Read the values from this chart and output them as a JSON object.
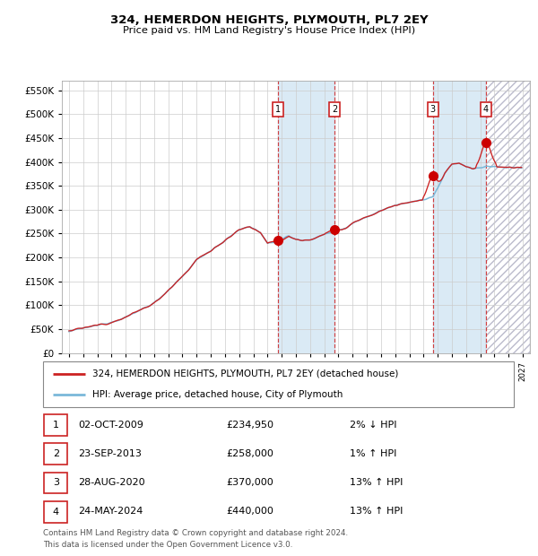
{
  "title": "324, HEMERDON HEIGHTS, PLYMOUTH, PL7 2EY",
  "subtitle": "Price paid vs. HM Land Registry's House Price Index (HPI)",
  "legend_line1": "324, HEMERDON HEIGHTS, PLYMOUTH, PL7 2EY (detached house)",
  "legend_line2": "HPI: Average price, detached house, City of Plymouth",
  "footer1": "Contains HM Land Registry data © Crown copyright and database right 2024.",
  "footer2": "This data is licensed under the Open Government Licence v3.0.",
  "sale_events": [
    {
      "num": 1,
      "date": "02-OCT-2009",
      "price": 234950,
      "pct": "2%",
      "dir": "↓",
      "x_year": 2009.75
    },
    {
      "num": 2,
      "date": "23-SEP-2013",
      "price": 258000,
      "pct": "1%",
      "dir": "↑",
      "x_year": 2013.72
    },
    {
      "num": 3,
      "date": "28-AUG-2020",
      "price": 370000,
      "pct": "13%",
      "dir": "↑",
      "x_year": 2020.66
    },
    {
      "num": 4,
      "date": "24-MAY-2024",
      "price": 440000,
      "pct": "13%",
      "dir": "↑",
      "x_year": 2024.4
    }
  ],
  "hpi_color": "#7ab8d9",
  "price_color": "#cc2222",
  "dot_color": "#cc0000",
  "shade_color": "#daeaf5",
  "ylim": [
    0,
    570000
  ],
  "xlim_start": 1994.5,
  "xlim_end": 2027.5,
  "yticks": [
    0,
    50000,
    100000,
    150000,
    200000,
    250000,
    300000,
    350000,
    400000,
    450000,
    500000,
    550000
  ],
  "bg_color": "#ffffff",
  "grid_color": "#cccccc"
}
